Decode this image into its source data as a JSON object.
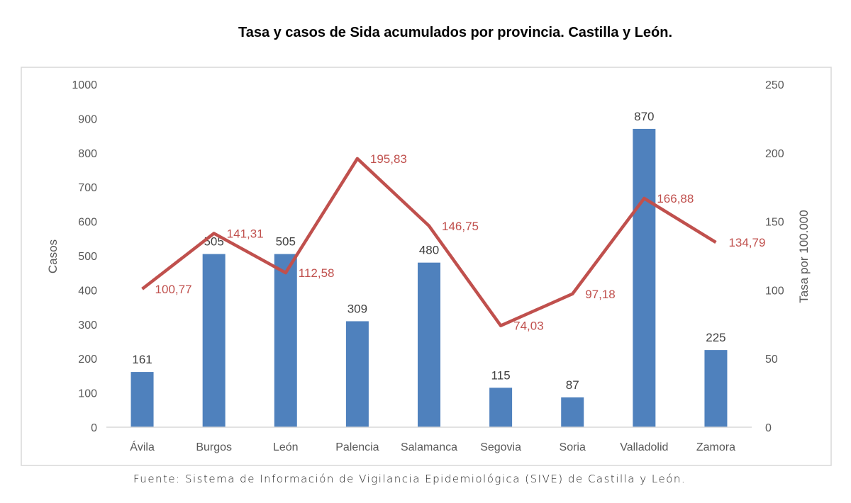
{
  "chart_data": {
    "type": "bar+line",
    "title": "Tasa y casos de Sida acumulados por provincia. Castilla y León.",
    "categories": [
      "Ávila",
      "Burgos",
      "León",
      "Palencia",
      "Salamanca",
      "Segovia",
      "Soria",
      "Valladolid",
      "Zamora"
    ],
    "series": [
      {
        "type": "bar",
        "axis": "left",
        "values": [
          161,
          505,
          505,
          309,
          480,
          115,
          87,
          870,
          225
        ],
        "labels": [
          "161",
          "505",
          "505",
          "309",
          "480",
          "115",
          "87",
          "870",
          "225"
        ],
        "color": "#4f81bd"
      },
      {
        "type": "line",
        "axis": "right",
        "values": [
          100.77,
          141.31,
          112.58,
          195.83,
          146.75,
          74.03,
          97.18,
          166.88,
          134.79
        ],
        "labels": [
          "100,77",
          "141,31",
          "112,58",
          "195,83",
          "146,75",
          "74,03",
          "97,18",
          "166,88",
          "134,79"
        ],
        "color": "#c0504d"
      }
    ],
    "ylabel": "Casos",
    "ylabel_right": "Tasa por 100.000",
    "ylim": [
      0,
      1000
    ],
    "ylim_right": [
      0,
      250
    ],
    "yticks": [
      "0",
      "100",
      "200",
      "300",
      "400",
      "500",
      "600",
      "700",
      "800",
      "900",
      "1000"
    ],
    "yticks_right": [
      "0",
      "50",
      "100",
      "150",
      "200",
      "250"
    ],
    "grid": false,
    "legend": "none"
  },
  "source": "Fuente: Sistema de Información de Vigilancia Epidemiológica (SIVE) de Castilla y León."
}
